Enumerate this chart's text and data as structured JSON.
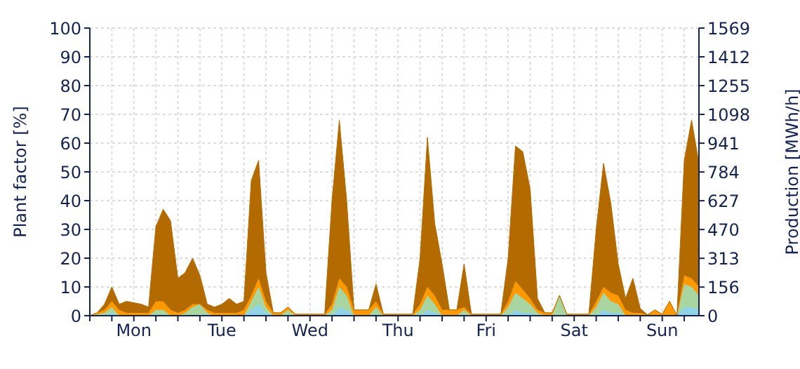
{
  "chart_data": {
    "type": "area",
    "stacked": true,
    "ylabel": "Plant factor [%]",
    "y2label": "Production [MWh/h]",
    "categories": [
      null,
      null,
      null,
      null,
      null,
      null,
      "Mon",
      null,
      null,
      null,
      null,
      null,
      null,
      null,
      null,
      null,
      null,
      null,
      "Tue",
      null,
      null,
      null,
      null,
      null,
      null,
      null,
      null,
      null,
      null,
      null,
      "Wed",
      null,
      null,
      null,
      null,
      null,
      null,
      null,
      null,
      null,
      null,
      null,
      "Thu",
      null,
      null,
      null,
      null,
      null,
      null,
      null,
      null,
      null,
      null,
      null,
      "Fri",
      null,
      null,
      null,
      null,
      null,
      null,
      null,
      null,
      null,
      null,
      null,
      "Sat",
      null,
      null,
      null,
      null,
      null,
      null,
      null,
      null,
      null,
      null,
      null,
      "Sun",
      null,
      null,
      null,
      null,
      null
    ],
    "series": [
      {
        "color": "#8fd3e8",
        "values": [
          0,
          0,
          0,
          1,
          0,
          0,
          0,
          0,
          0,
          0,
          0,
          0,
          0,
          0,
          0,
          0,
          0,
          0,
          0,
          0,
          0,
          0,
          2,
          4,
          1,
          0,
          0,
          0,
          0,
          0,
          0,
          0,
          0,
          0,
          3,
          2,
          0,
          0,
          0,
          0,
          0,
          0,
          0,
          0,
          0,
          0,
          2,
          1,
          0,
          0,
          0,
          0,
          0,
          0,
          0,
          0,
          0,
          0,
          2,
          1,
          1,
          0,
          0,
          0,
          0,
          0,
          0,
          0,
          0,
          0,
          2,
          1,
          1,
          0,
          0,
          0,
          0,
          0,
          0,
          0,
          0,
          3,
          3,
          2
        ]
      },
      {
        "color": "#a8d5a0",
        "values": [
          0,
          0.5,
          1,
          2,
          0,
          0,
          0,
          0,
          0,
          2,
          2,
          0,
          0,
          1,
          3,
          4,
          1,
          0,
          0,
          0,
          0,
          0,
          3,
          6,
          2,
          0,
          0,
          2,
          0,
          0,
          0,
          0,
          0,
          2,
          7,
          5,
          0,
          0,
          0,
          3,
          0,
          0,
          0,
          0,
          0,
          2,
          5,
          3,
          0,
          0,
          0,
          2,
          0,
          0,
          0,
          0,
          0,
          3,
          6,
          5,
          3,
          1,
          0,
          0,
          7,
          0,
          0,
          0,
          0,
          3,
          6,
          4,
          3,
          0,
          0,
          0,
          0,
          0,
          0,
          0,
          0,
          8,
          7,
          5
        ]
      },
      {
        "color": "#ff9900",
        "values": [
          0,
          0.5,
          1,
          2,
          2,
          1,
          1,
          1,
          1,
          3,
          3,
          2,
          1,
          1,
          1,
          0,
          1,
          1,
          1,
          1,
          1,
          2,
          2,
          3,
          2,
          1,
          1,
          1,
          0.5,
          0.5,
          0.5,
          0.5,
          0.5,
          2,
          3,
          3,
          2,
          2,
          2,
          2,
          0.5,
          0.5,
          0.5,
          0.5,
          0.5,
          2,
          3,
          3,
          2,
          2,
          2,
          1,
          0.5,
          0.5,
          0.5,
          0.5,
          0.5,
          2,
          4,
          3,
          2,
          1,
          1,
          1,
          0,
          0.5,
          0.5,
          0.5,
          0.5,
          2,
          2,
          3,
          3,
          2,
          1,
          1,
          0.3,
          2,
          0.5,
          5,
          0,
          3,
          3,
          3
        ]
      },
      {
        "color": "#b36b00",
        "values": [
          0,
          0,
          2,
          5,
          2,
          4,
          3.5,
          3,
          2,
          26,
          32,
          31,
          12,
          13,
          16,
          10,
          2,
          2,
          3,
          5,
          3,
          3,
          40,
          41,
          10,
          0,
          0,
          0,
          0,
          0,
          0,
          0,
          0,
          36,
          55,
          30,
          0,
          0,
          0,
          6,
          0,
          0,
          0,
          0,
          0,
          16,
          52,
          25,
          16,
          0,
          0,
          15,
          0,
          0,
          0,
          0,
          0,
          15,
          47,
          48,
          38,
          4,
          0,
          0,
          0,
          0,
          0,
          0,
          0,
          25,
          43,
          31,
          11,
          4,
          12,
          1.5,
          0,
          0,
          0,
          0,
          0,
          40,
          55,
          43
        ]
      }
    ],
    "ylim": [
      0,
      100
    ],
    "yticks": [
      0,
      10,
      20,
      30,
      40,
      50,
      60,
      70,
      80,
      90,
      100
    ],
    "y2lim": [
      0,
      1569
    ],
    "y2ticks": [
      0,
      156,
      313,
      470,
      627,
      784,
      941,
      1098,
      1255,
      1412,
      1569
    ],
    "grid": true,
    "legend": false
  }
}
